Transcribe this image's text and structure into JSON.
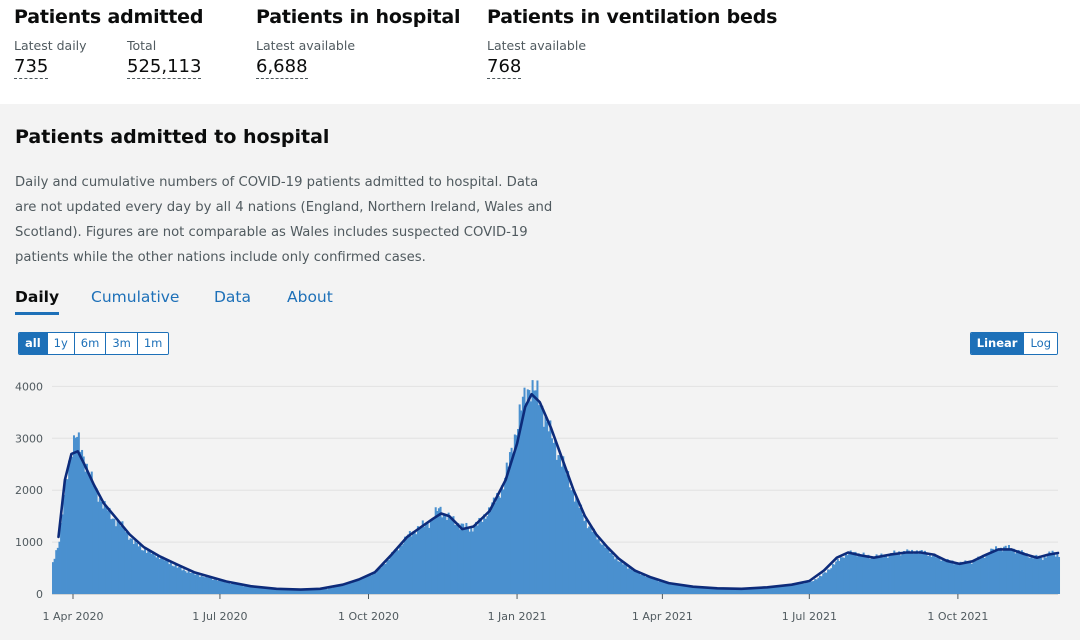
{
  "headline": {
    "groups": [
      {
        "title": "Patients admitted",
        "metrics": [
          {
            "label": "Latest daily",
            "value": "735"
          },
          {
            "label": "Total",
            "value": "525,113"
          }
        ]
      },
      {
        "title": "Patients in hospital",
        "metrics": [
          {
            "label": "Latest available",
            "value": "6,688"
          }
        ]
      },
      {
        "title": "Patients in ventilation beds",
        "metrics": [
          {
            "label": "Latest available",
            "value": "768"
          }
        ]
      }
    ]
  },
  "card": {
    "title": "Patients admitted to hospital",
    "description": "Daily and cumulative numbers of COVID-19 patients admitted to hospital. Data are not updated every day by all 4 nations (England, Northern Ireland, Wales and Scotland). Figures are not comparable as Wales includes suspected COVID-19 patients while the other nations include only confirmed cases.",
    "tabs": [
      {
        "label": "Daily",
        "active": true
      },
      {
        "label": "Cumulative",
        "active": false
      },
      {
        "label": "Data",
        "active": false
      },
      {
        "label": "About",
        "active": false
      }
    ],
    "range_buttons": [
      {
        "label": "all",
        "active": true
      },
      {
        "label": "1y",
        "active": false
      },
      {
        "label": "6m",
        "active": false
      },
      {
        "label": "3m",
        "active": false
      },
      {
        "label": "1m",
        "active": false
      }
    ],
    "scale_buttons": [
      {
        "label": "Linear",
        "active": true
      },
      {
        "label": "Log",
        "active": false
      }
    ]
  },
  "colors": {
    "bars": "#4a90cf",
    "average_line": "#0d2b7a",
    "accent": "#1d70b8"
  },
  "chart_data": {
    "type": "bar",
    "x_axis": {
      "ticks": [
        {
          "date": "2020-04-01",
          "label": "1 Apr 2020"
        },
        {
          "date": "2020-07-01",
          "label": "1 Jul 2020"
        },
        {
          "date": "2020-10-01",
          "label": "1 Oct 2020"
        },
        {
          "date": "2021-01-01",
          "label": "1 Jan 2021"
        },
        {
          "date": "2021-04-01",
          "label": "1 Apr 2021"
        },
        {
          "date": "2021-07-01",
          "label": "1 Jul 2021"
        },
        {
          "date": "2021-10-01",
          "label": "1 Oct 2021"
        }
      ],
      "range": [
        "2020-03-19",
        "2021-12-02"
      ]
    },
    "y_axis": {
      "ticks": [
        0,
        1000,
        2000,
        3000,
        4000
      ],
      "range": [
        0,
        4200
      ]
    },
    "grid": true,
    "series": [
      {
        "kind": "bars",
        "points": [
          [
            "2020-03-19",
            600
          ],
          [
            "2020-03-23",
            1050
          ],
          [
            "2020-03-27",
            2100
          ],
          [
            "2020-03-30",
            2700
          ],
          [
            "2020-04-02",
            3100
          ],
          [
            "2020-04-06",
            2700
          ],
          [
            "2020-04-10",
            2400
          ],
          [
            "2020-04-14",
            2000
          ],
          [
            "2020-04-18",
            1800
          ],
          [
            "2020-04-24",
            1500
          ],
          [
            "2020-05-01",
            1300
          ],
          [
            "2020-05-08",
            1000
          ],
          [
            "2020-05-15",
            850
          ],
          [
            "2020-05-25",
            700
          ],
          [
            "2020-06-05",
            500
          ],
          [
            "2020-06-15",
            380
          ],
          [
            "2020-06-25",
            300
          ],
          [
            "2020-07-05",
            220
          ],
          [
            "2020-07-20",
            130
          ],
          [
            "2020-08-05",
            90
          ],
          [
            "2020-08-20",
            80
          ],
          [
            "2020-09-05",
            100
          ],
          [
            "2020-09-15",
            180
          ],
          [
            "2020-09-25",
            280
          ],
          [
            "2020-10-05",
            420
          ],
          [
            "2020-10-12",
            650
          ],
          [
            "2020-10-19",
            900
          ],
          [
            "2020-10-26",
            1150
          ],
          [
            "2020-11-02",
            1300
          ],
          [
            "2020-11-08",
            1400
          ],
          [
            "2020-11-13",
            1650
          ],
          [
            "2020-11-18",
            1500
          ],
          [
            "2020-11-25",
            1350
          ],
          [
            "2020-12-02",
            1250
          ],
          [
            "2020-12-09",
            1400
          ],
          [
            "2020-12-16",
            1700
          ],
          [
            "2020-12-23",
            2100
          ],
          [
            "2020-12-29",
            2900
          ],
          [
            "2021-01-04",
            3700
          ],
          [
            "2021-01-08",
            4000
          ],
          [
            "2021-01-12",
            3900
          ],
          [
            "2021-01-16",
            3600
          ],
          [
            "2021-01-22",
            3000
          ],
          [
            "2021-01-29",
            2500
          ],
          [
            "2021-02-05",
            1900
          ],
          [
            "2021-02-12",
            1400
          ],
          [
            "2021-02-19",
            1100
          ],
          [
            "2021-02-26",
            850
          ],
          [
            "2021-03-05",
            620
          ],
          [
            "2021-03-15",
            430
          ],
          [
            "2021-03-25",
            300
          ],
          [
            "2021-04-05",
            200
          ],
          [
            "2021-04-20",
            140
          ],
          [
            "2021-05-05",
            100
          ],
          [
            "2021-05-20",
            100
          ],
          [
            "2021-06-05",
            130
          ],
          [
            "2021-06-20",
            180
          ],
          [
            "2021-07-01",
            230
          ],
          [
            "2021-07-08",
            350
          ],
          [
            "2021-07-15",
            550
          ],
          [
            "2021-07-22",
            750
          ],
          [
            "2021-07-29",
            800
          ],
          [
            "2021-08-05",
            720
          ],
          [
            "2021-08-15",
            730
          ],
          [
            "2021-08-25",
            800
          ],
          [
            "2021-09-05",
            820
          ],
          [
            "2021-09-12",
            780
          ],
          [
            "2021-09-20",
            680
          ],
          [
            "2021-09-28",
            600
          ],
          [
            "2021-10-06",
            600
          ],
          [
            "2021-10-14",
            680
          ],
          [
            "2021-10-22",
            850
          ],
          [
            "2021-10-30",
            900
          ],
          [
            "2021-11-07",
            820
          ],
          [
            "2021-11-15",
            720
          ],
          [
            "2021-11-22",
            700
          ],
          [
            "2021-11-28",
            800
          ],
          [
            "2021-12-02",
            740
          ]
        ]
      },
      {
        "kind": "line",
        "points": [
          [
            "2020-03-23",
            1100
          ],
          [
            "2020-03-27",
            2200
          ],
          [
            "2020-03-31",
            2700
          ],
          [
            "2020-04-04",
            2750
          ],
          [
            "2020-04-08",
            2500
          ],
          [
            "2020-04-14",
            2100
          ],
          [
            "2020-04-20",
            1750
          ],
          [
            "2020-04-28",
            1450
          ],
          [
            "2020-05-06",
            1150
          ],
          [
            "2020-05-15",
            900
          ],
          [
            "2020-05-25",
            720
          ],
          [
            "2020-06-05",
            560
          ],
          [
            "2020-06-15",
            420
          ],
          [
            "2020-06-25",
            330
          ],
          [
            "2020-07-05",
            240
          ],
          [
            "2020-07-20",
            150
          ],
          [
            "2020-08-05",
            100
          ],
          [
            "2020-08-20",
            85
          ],
          [
            "2020-09-01",
            100
          ],
          [
            "2020-09-15",
            180
          ],
          [
            "2020-09-25",
            280
          ],
          [
            "2020-10-05",
            420
          ],
          [
            "2020-10-15",
            750
          ],
          [
            "2020-10-25",
            1100
          ],
          [
            "2020-11-03",
            1300
          ],
          [
            "2020-11-10",
            1450
          ],
          [
            "2020-11-15",
            1550
          ],
          [
            "2020-11-20",
            1500
          ],
          [
            "2020-11-28",
            1250
          ],
          [
            "2020-12-05",
            1300
          ],
          [
            "2020-12-15",
            1600
          ],
          [
            "2020-12-25",
            2200
          ],
          [
            "2021-01-01",
            2900
          ],
          [
            "2021-01-06",
            3600
          ],
          [
            "2021-01-10",
            3850
          ],
          [
            "2021-01-15",
            3700
          ],
          [
            "2021-01-22",
            3200
          ],
          [
            "2021-01-29",
            2600
          ],
          [
            "2021-02-05",
            2000
          ],
          [
            "2021-02-12",
            1500
          ],
          [
            "2021-02-19",
            1150
          ],
          [
            "2021-02-26",
            900
          ],
          [
            "2021-03-05",
            680
          ],
          [
            "2021-03-15",
            450
          ],
          [
            "2021-03-25",
            320
          ],
          [
            "2021-04-05",
            210
          ],
          [
            "2021-04-20",
            140
          ],
          [
            "2021-05-05",
            110
          ],
          [
            "2021-05-20",
            100
          ],
          [
            "2021-06-05",
            130
          ],
          [
            "2021-06-20",
            180
          ],
          [
            "2021-07-01",
            250
          ],
          [
            "2021-07-10",
            450
          ],
          [
            "2021-07-18",
            700
          ],
          [
            "2021-07-25",
            800
          ],
          [
            "2021-08-01",
            750
          ],
          [
            "2021-08-10",
            700
          ],
          [
            "2021-08-20",
            760
          ],
          [
            "2021-08-30",
            800
          ],
          [
            "2021-09-08",
            800
          ],
          [
            "2021-09-16",
            760
          ],
          [
            "2021-09-24",
            640
          ],
          [
            "2021-10-02",
            580
          ],
          [
            "2021-10-10",
            630
          ],
          [
            "2021-10-18",
            750
          ],
          [
            "2021-10-26",
            860
          ],
          [
            "2021-11-03",
            860
          ],
          [
            "2021-11-11",
            770
          ],
          [
            "2021-11-19",
            700
          ],
          [
            "2021-11-26",
            760
          ],
          [
            "2021-12-02",
            790
          ]
        ]
      }
    ]
  }
}
